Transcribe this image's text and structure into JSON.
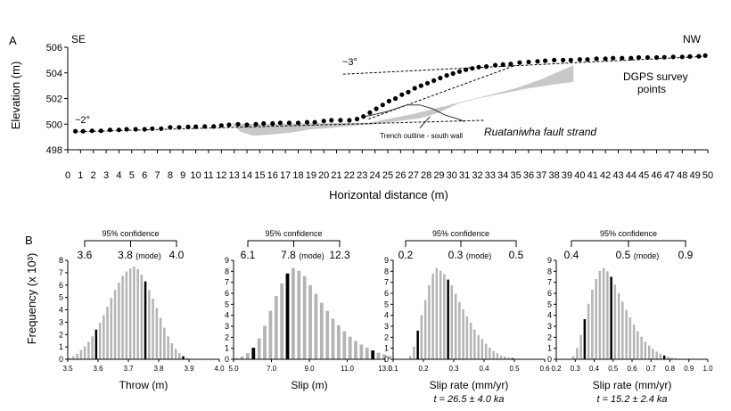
{
  "chart_data": [
    {
      "panel": "A",
      "type": "scatter",
      "xlabel": "Horizontal distance (m)",
      "ylabel": "Elevation (m)",
      "xlim": [
        0,
        50
      ],
      "ylim": [
        498,
        506
      ],
      "xticks": [
        0,
        1,
        2,
        3,
        4,
        5,
        6,
        7,
        8,
        9,
        10,
        11,
        12,
        13,
        14,
        15,
        16,
        17,
        18,
        19,
        20,
        21,
        22,
        23,
        24,
        25,
        26,
        27,
        28,
        29,
        30,
        31,
        32,
        33,
        34,
        35,
        36,
        37,
        38,
        39,
        40,
        41,
        42,
        43,
        44,
        45,
        46,
        47,
        48,
        49,
        50
      ],
      "yticks": [
        498,
        500,
        502,
        504,
        506
      ],
      "annotations": {
        "se": "SE",
        "nw": "NW",
        "slope_low": "~2°",
        "slope_high": "~3°",
        "dgps_line1": "DGPS survey",
        "dgps_line2": "points",
        "fault": "Ruataniwha fault strand",
        "trench": "Trench outline - south wall"
      },
      "series": [
        {
          "name": "DGPS survey points",
          "x": [
            0.6,
            1.2,
            1.9,
            2.6,
            3.3,
            4.0,
            4.6,
            5.3,
            6.0,
            6.6,
            7.3,
            8.0,
            8.7,
            9.4,
            10.0,
            10.7,
            11.4,
            12.0,
            12.6,
            13.3,
            14.0,
            14.7,
            15.3,
            16.0,
            16.6,
            17.3,
            18.0,
            18.7,
            19.3,
            20.0,
            20.6,
            21.3,
            22.0,
            22.6,
            23.1,
            23.6,
            24.1,
            24.6,
            25.1,
            25.6,
            26.1,
            26.6,
            27.1,
            27.6,
            28.1,
            28.6,
            29.1,
            29.6,
            30.1,
            30.6,
            31.1,
            31.6,
            32.1,
            32.7,
            33.4,
            34.0,
            34.6,
            35.3,
            36.0,
            36.7,
            37.3,
            38.0,
            38.7,
            39.3,
            40.0,
            40.6,
            41.3,
            42.0,
            42.6,
            43.3,
            44.0,
            44.6,
            45.3,
            46.0,
            46.6,
            47.3,
            48.0,
            48.6,
            49.3,
            49.8
          ],
          "y": [
            499.45,
            499.45,
            499.48,
            499.48,
            499.55,
            499.55,
            499.6,
            499.6,
            499.6,
            499.65,
            499.65,
            499.75,
            499.75,
            499.78,
            499.8,
            499.82,
            499.82,
            499.9,
            499.95,
            500.0,
            499.95,
            500.0,
            500.05,
            500.05,
            500.1,
            500.1,
            500.1,
            500.15,
            500.15,
            500.25,
            500.3,
            500.3,
            500.3,
            500.4,
            500.6,
            500.9,
            501.2,
            501.5,
            501.8,
            502.0,
            502.3,
            502.5,
            502.8,
            503.0,
            503.2,
            503.4,
            503.6,
            503.8,
            503.95,
            504.1,
            504.25,
            504.35,
            504.45,
            504.5,
            504.6,
            504.65,
            504.7,
            504.8,
            504.85,
            504.9,
            504.95,
            505.0,
            505.0,
            505.0,
            505.05,
            505.05,
            505.1,
            505.1,
            505.15,
            505.15,
            505.15,
            505.2,
            505.2,
            505.2,
            505.22,
            505.25,
            505.25,
            505.28,
            505.3,
            505.35
          ]
        }
      ]
    },
    {
      "panel": "B1",
      "type": "bar",
      "xlabel": "Throw (m)",
      "ylabel": "Frequency (x 10³)",
      "xlim": [
        3.5,
        4.0
      ],
      "ylim": [
        0,
        8
      ],
      "xtick_labels": [
        "3.5",
        "3.6",
        "3.7",
        "3.8",
        "3.9",
        "4.0"
      ],
      "ytick_labels": [
        "0",
        "1",
        "2",
        "3",
        "4",
        "5",
        "6",
        "7",
        "8"
      ],
      "confidence_title": "95% confidence",
      "confidence_labels": [
        "3.6",
        "3.8",
        "(mode)",
        "4.0"
      ],
      "bin_width": 0.0125,
      "bins_start": 3.5,
      "values": [
        0.1,
        0.25,
        0.45,
        0.75,
        1.05,
        1.4,
        1.85,
        2.4,
        2.95,
        3.55,
        4.25,
        4.95,
        5.6,
        6.2,
        6.75,
        7.1,
        7.35,
        7.5,
        7.3,
        6.85,
        6.3,
        5.6,
        4.9,
        4.15,
        3.35,
        2.55,
        1.85,
        1.3,
        0.85,
        0.5,
        0.25,
        0.1
      ],
      "highlight_bins": [
        7,
        20,
        30
      ]
    },
    {
      "panel": "B2",
      "type": "bar",
      "xlabel": "Slip (m)",
      "ylabel": "",
      "xlim": [
        5.0,
        13.0
      ],
      "ylim": [
        0,
        9
      ],
      "xtick_labels": [
        "5.0",
        "7.0",
        "9.0",
        "11.0",
        "13.0"
      ],
      "ytick_labels": [
        "0",
        "1",
        "2",
        "3",
        "4",
        "5",
        "6",
        "7",
        "8",
        "9"
      ],
      "confidence_title": "95% confidence",
      "confidence_labels": [
        "6.1",
        "7.8",
        "(mode)",
        "12.3"
      ],
      "bin_width": 0.3,
      "bins_start": 5.0,
      "values": [
        0.1,
        0.25,
        0.55,
        1.05,
        1.9,
        3.05,
        4.4,
        5.75,
        6.9,
        7.8,
        8.3,
        8.05,
        7.55,
        6.75,
        5.95,
        5.15,
        4.4,
        3.7,
        3.1,
        2.55,
        2.05,
        1.65,
        1.35,
        1.05,
        0.8,
        0.6,
        0.45,
        0.3
      ],
      "highlight_bins": [
        3,
        9,
        24
      ]
    },
    {
      "panel": "B3",
      "type": "bar",
      "xlabel": "Slip rate (mm/yr)",
      "subtitle": "t = 26.5 ± 4.0 ka",
      "ylabel": "",
      "xlim": [
        0.1,
        0.6
      ],
      "ylim": [
        0,
        9
      ],
      "xtick_labels": [
        "0.1",
        "0.2",
        "0.3",
        "0.4",
        "0.5",
        "0.6"
      ],
      "ytick_labels": [
        "0",
        "1",
        "2",
        "3",
        "4",
        "5",
        "6",
        "7",
        "8",
        "9"
      ],
      "confidence_title": "95% confidence",
      "confidence_labels": [
        "0.2",
        "0.3",
        "(mode)",
        "0.5"
      ],
      "bin_width": 0.0125,
      "bins_start": 0.1,
      "values": [
        0.0,
        0.0,
        0.0,
        0.05,
        0.3,
        1.15,
        2.6,
        4.0,
        5.4,
        6.75,
        7.8,
        8.3,
        8.05,
        7.75,
        7.25,
        6.75,
        5.95,
        5.2,
        4.55,
        3.9,
        3.35,
        2.7,
        2.2,
        1.85,
        1.4,
        1.05,
        0.75,
        0.55,
        0.35,
        0.25,
        0.15,
        0.1,
        0.05,
        0.05,
        0.0,
        0.0,
        0.0,
        0.0,
        0.0,
        0.0
      ],
      "highlight_bins": [
        6,
        14,
        31
      ]
    },
    {
      "panel": "B4",
      "type": "bar",
      "xlabel": "Slip rate (mm/yr)",
      "subtitle": "t = 15.2 ± 2.4 ka",
      "ylabel": "",
      "xlim": [
        0.2,
        1.0
      ],
      "ylim": [
        0,
        9
      ],
      "xtick_labels": [
        "0.2",
        "0.3",
        "0.4",
        "0.5",
        "0.6",
        "0.7",
        "0.8",
        "0.9",
        "1.0"
      ],
      "ytick_labels": [
        "0",
        "1",
        "2",
        "3",
        "4",
        "5",
        "6",
        "7",
        "8",
        "9"
      ],
      "confidence_title": "95% confidence",
      "confidence_labels": [
        "0.4",
        "0.5",
        "(mode)",
        "0.9"
      ],
      "bin_width": 0.02,
      "bins_start": 0.2,
      "values": [
        0.0,
        0.0,
        0.0,
        0.05,
        0.3,
        1.05,
        2.2,
        3.65,
        5.05,
        6.35,
        7.3,
        8.05,
        8.3,
        8.0,
        7.5,
        6.8,
        6.0,
        5.25,
        4.5,
        3.8,
        3.15,
        2.55,
        2.05,
        1.6,
        1.25,
        0.95,
        0.7,
        0.5,
        0.35,
        0.25,
        0.15,
        0.1,
        0.05,
        0.05,
        0.0,
        0.0,
        0.0,
        0.0,
        0.0,
        0.0
      ],
      "highlight_bins": [
        7,
        14,
        28
      ]
    }
  ],
  "panel_labels": {
    "a": "A",
    "b": "B"
  }
}
